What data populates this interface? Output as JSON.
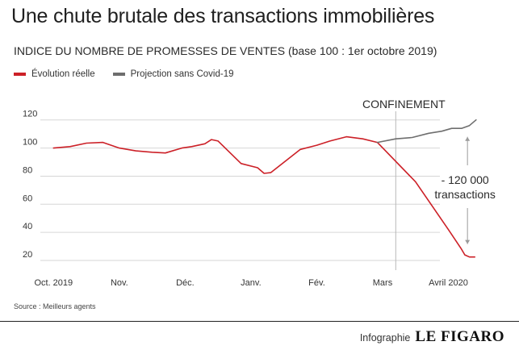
{
  "colors": {
    "reelle": "#cc2027",
    "projection": "#6e6e6e",
    "grid": "#d6d6d6",
    "confinement_line": "#b8b8b8"
  },
  "chart_data": {
    "type": "line",
    "title": "Une chute brutale des transactions immobilières",
    "subtitle": "INDICE DU NOMBRE DE PROMESSES DE VENTES (base 100 : 1er octobre 2019)",
    "xlabel": "",
    "ylabel": "",
    "x_ticks": [
      "Oct. 2019",
      "Nov.",
      "Déc.",
      "Janv.",
      "Fév.",
      "Mars",
      "Avril 2020"
    ],
    "x_tick_pos": [
      0,
      1,
      2,
      3,
      4,
      5,
      6
    ],
    "y_ticks": [
      20,
      40,
      60,
      80,
      100,
      120
    ],
    "xlim": [
      -0.2,
      6.3
    ],
    "ylim": [
      16,
      125
    ],
    "grid": "horizontal",
    "legend_position": "top-left",
    "series": [
      {
        "name": "Évolution réelle",
        "color": "#cc2027",
        "points": [
          [
            0,
            100
          ],
          [
            0.25,
            101
          ],
          [
            0.5,
            103.5
          ],
          [
            0.75,
            104
          ],
          [
            1,
            100
          ],
          [
            1.25,
            98
          ],
          [
            1.5,
            97
          ],
          [
            1.7,
            96.5
          ],
          [
            1.95,
            100
          ],
          [
            2.1,
            101
          ],
          [
            2.3,
            103
          ],
          [
            2.4,
            106
          ],
          [
            2.5,
            105
          ],
          [
            2.85,
            89
          ],
          [
            3.1,
            86
          ],
          [
            3.2,
            82
          ],
          [
            3.3,
            82.5
          ],
          [
            3.75,
            99
          ],
          [
            4,
            102
          ],
          [
            4.2,
            105
          ],
          [
            4.45,
            108
          ],
          [
            4.7,
            106.5
          ],
          [
            4.92,
            104
          ],
          [
            5.5,
            76
          ],
          [
            6,
            42
          ],
          [
            6.1,
            35
          ],
          [
            6.2,
            28
          ],
          [
            6.25,
            24
          ],
          [
            6.32,
            22.5
          ],
          [
            6.4,
            22.5
          ]
        ]
      },
      {
        "name": "Projection sans Covid-19",
        "color": "#6e6e6e",
        "points": [
          [
            4.92,
            104
          ],
          [
            5.2,
            106.5
          ],
          [
            5.45,
            107.5
          ],
          [
            5.7,
            110.5
          ],
          [
            5.9,
            112
          ],
          [
            6.05,
            114
          ],
          [
            6.2,
            114
          ],
          [
            6.32,
            116
          ],
          [
            6.42,
            120
          ]
        ]
      }
    ],
    "annotations": {
      "confinement_label": "CONFINEMENT",
      "confinement_x": 5.2,
      "gap_label_line1": "- 120 000",
      "gap_label_line2": "transactions",
      "gap_arrow_x": 6.4,
      "gap_top": 116,
      "gap_bottom": 22.5
    },
    "source": "Source : Meilleurs agents"
  },
  "footer": {
    "credit": "Infographie",
    "brand": "LE FIGARO"
  }
}
